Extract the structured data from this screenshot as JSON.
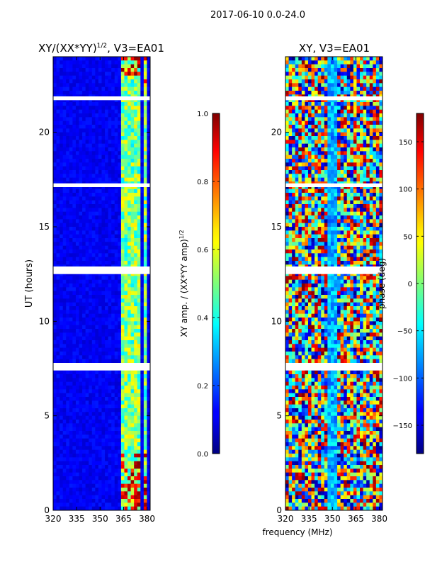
{
  "suptitle": "2017-06-10 0.0-24.0",
  "shared_xlabel": "frequency (MHz)",
  "chart_data": [
    {
      "type": "heatmap",
      "title_main": "XY/(XX*YY)",
      "title_sup": "1/2",
      "title_rest": ", V3=EA01",
      "ylabel": "UT (hours)",
      "x_range": [
        320,
        382
      ],
      "y_range": [
        0,
        24
      ],
      "x_ticks": [
        320,
        335,
        350,
        365,
        380
      ],
      "y_ticks": [
        0,
        5,
        10,
        15,
        20
      ],
      "x_tick_labels": [
        "320",
        "335",
        "350",
        "365",
        "380"
      ],
      "y_tick_labels": [
        "0",
        "5",
        "10",
        "15",
        "20"
      ],
      "colorbar": {
        "label_main": "XY amp. / (XX*YY amp)",
        "label_sup": "1/2",
        "range": [
          0.0,
          1.0
        ],
        "ticks": [
          0.0,
          0.2,
          0.4,
          0.6,
          0.8,
          1.0
        ],
        "tick_labels": [
          "0.0",
          "0.2",
          "0.4",
          "0.6",
          "0.8",
          "1.0"
        ],
        "colormap": "jet"
      },
      "bright_bands_mhz": [
        [
          363,
          366
        ],
        [
          366,
          368
        ],
        [
          368,
          371
        ],
        [
          372,
          375
        ],
        [
          377,
          380
        ]
      ],
      "flagged_hours": [
        [
          7.4,
          7.8
        ],
        [
          12.5,
          12.9
        ],
        [
          17.1,
          17.3
        ],
        [
          21.7,
          21.9
        ]
      ]
    },
    {
      "type": "heatmap",
      "title_main": "XY, V3=EA01",
      "ylabel": "",
      "x_range": [
        320,
        382
      ],
      "y_range": [
        0,
        24
      ],
      "x_ticks": [
        320,
        335,
        350,
        365,
        380
      ],
      "y_ticks": [
        0,
        5,
        10,
        15,
        20
      ],
      "x_tick_labels": [
        "320",
        "335",
        "350",
        "365",
        "380"
      ],
      "y_tick_labels": [
        "0",
        "5",
        "10",
        "15",
        "20"
      ],
      "colorbar": {
        "label_main": "phase (deg)",
        "range": [
          -180,
          180
        ],
        "ticks": [
          -150,
          -100,
          -50,
          0,
          50,
          100,
          150
        ],
        "tick_labels": [
          "−150",
          "−100",
          "−50",
          "0",
          "50",
          "100",
          "150"
        ],
        "colormap": "jet"
      },
      "flagged_hours": [
        [
          7.4,
          7.8
        ],
        [
          12.5,
          12.9
        ],
        [
          17.1,
          17.3
        ],
        [
          21.7,
          21.9
        ]
      ]
    }
  ]
}
